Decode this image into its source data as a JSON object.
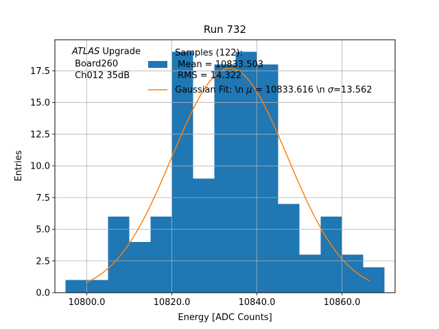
{
  "chart_data": {
    "type": "bar",
    "title": "Run 732",
    "xlabel": "Energy [ADC Counts]",
    "ylabel": "Entries",
    "xlim": [
      10792.5,
      10872.5
    ],
    "ylim": [
      0,
      19.95
    ],
    "grid": true,
    "x_ticks": [
      10800,
      10820,
      10840,
      10860
    ],
    "x_tick_labels": [
      "10800.0",
      "10820.0",
      "10840.0",
      "10860.0"
    ],
    "y_ticks": [
      0,
      2.5,
      5,
      7.5,
      10,
      12.5,
      15,
      17.5
    ],
    "y_tick_labels": [
      "0.0",
      "2.5",
      "5.0",
      "7.5",
      "10.0",
      "12.5",
      "15.0",
      "17.5"
    ],
    "bin_edges": [
      10795,
      10800,
      10805,
      10810,
      10815,
      10820,
      10825,
      10830,
      10835,
      10840,
      10845,
      10850,
      10855,
      10860,
      10865,
      10870
    ],
    "values": [
      1,
      1,
      6,
      4,
      6,
      19,
      9,
      18,
      19,
      18,
      7,
      3,
      6,
      3,
      2
    ],
    "bar_color": "#1f77b4",
    "fit": {
      "type": "gaussian",
      "mu": 10833.616,
      "sigma": 13.562,
      "amplitude": 17.7,
      "x_range": [
        10800,
        10866.5
      ],
      "color": "#ff7f0e"
    },
    "legend": {
      "placement": "top-right",
      "entries": [
        {
          "kind": "patch",
          "lines": [
            "Samples (122):",
            " Mean = 10833.503",
            " RMS = 14.322"
          ]
        },
        {
          "kind": "line",
          "lines": [
            "Gaussian Fit: \\n $\\mu$ = 10833.616 \\n $\\sigma$=13.562"
          ]
        }
      ]
    },
    "annotation": {
      "lines": [
        "ATLAS Upgrade",
        " Board260",
        " Ch012 35dB"
      ]
    }
  }
}
